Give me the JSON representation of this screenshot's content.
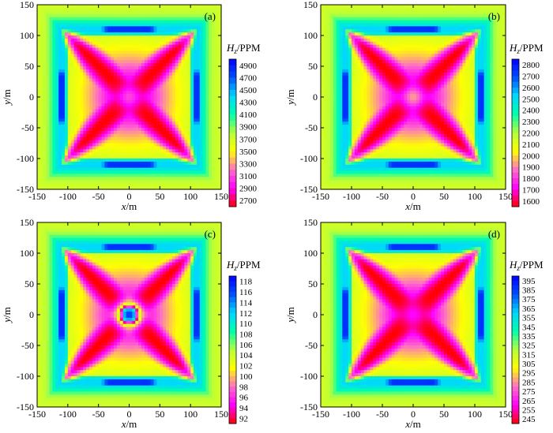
{
  "chart_data": [
    {
      "type": "heatmap",
      "panel_label": "(a)",
      "xlabel": "x/m",
      "ylabel": "y/m",
      "xlim": [
        -150,
        150
      ],
      "ylim": [
        -150,
        150
      ],
      "xticks": [
        -150,
        -100,
        -50,
        0,
        50,
        100,
        150
      ],
      "yticks": [
        -150,
        -100,
        -50,
        0,
        50,
        100,
        150
      ],
      "colorbar_title": "Hz/PPM",
      "colorbar_ticks": [
        4900,
        4700,
        4500,
        4300,
        4100,
        3900,
        3700,
        3500,
        3300,
        3100,
        2900,
        2700
      ],
      "vmin": 2700,
      "vmax": 4900,
      "center_value": 3150
    },
    {
      "type": "heatmap",
      "panel_label": "(b)",
      "xlabel": "x/m",
      "ylabel": "y/m",
      "xlim": [
        -150,
        150
      ],
      "ylim": [
        -150,
        150
      ],
      "xticks": [
        -150,
        -100,
        -50,
        0,
        50,
        100,
        150
      ],
      "yticks": [
        -150,
        -100,
        -50,
        0,
        50,
        100,
        150
      ],
      "colorbar_title": "Hz/PPM",
      "colorbar_ticks": [
        2800,
        2700,
        2600,
        2500,
        2400,
        2300,
        2200,
        2100,
        2000,
        1900,
        1800,
        1700,
        1600
      ],
      "vmin": 1600,
      "vmax": 2800,
      "center_value": 1950
    },
    {
      "type": "heatmap",
      "panel_label": "(c)",
      "xlabel": "x/m",
      "ylabel": "y/m",
      "xlim": [
        -150,
        150
      ],
      "ylim": [
        -150,
        150
      ],
      "xticks": [
        -150,
        -100,
        -50,
        0,
        50,
        100,
        150
      ],
      "yticks": [
        -150,
        -100,
        -50,
        0,
        50,
        100,
        150
      ],
      "colorbar_title": "Hz/PPM",
      "colorbar_ticks": [
        118,
        116,
        114,
        112,
        110,
        108,
        106,
        104,
        102,
        100,
        98,
        96,
        94,
        92
      ],
      "vmin": 92,
      "vmax": 118,
      "center_value": 116
    },
    {
      "type": "heatmap",
      "panel_label": "(d)",
      "xlabel": "x/m",
      "ylabel": "y/m",
      "xlim": [
        -150,
        150
      ],
      "ylim": [
        -150,
        150
      ],
      "xticks": [
        -150,
        -100,
        -50,
        0,
        50,
        100,
        150
      ],
      "yticks": [
        -150,
        -100,
        -50,
        0,
        50,
        100,
        150
      ],
      "colorbar_title": "Hz/PPM",
      "colorbar_ticks": [
        395,
        385,
        375,
        365,
        355,
        345,
        335,
        325,
        315,
        305,
        295,
        285,
        275,
        265,
        255,
        245
      ],
      "vmin": 245,
      "vmax": 395,
      "center_value": 265
    }
  ],
  "colormap": [
    "#ff0000",
    "#ff00ff",
    "#ff6ec7",
    "#ffff00",
    "#b4ff3c",
    "#00ffaa",
    "#00d7ff",
    "#0050ff",
    "#0000ff"
  ]
}
